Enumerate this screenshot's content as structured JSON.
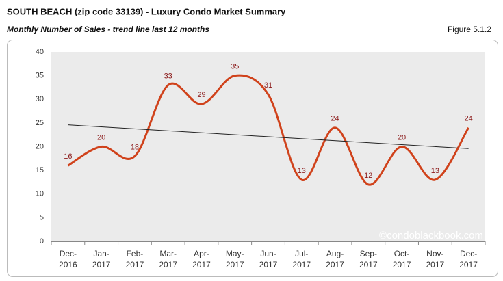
{
  "chart_data": {
    "type": "line",
    "title": "SOUTH BEACH (zip code 33139) - Luxury Condo Market Summary",
    "subtitle": "Monthly Number of Sales - trend line last 12 months",
    "figure_label": "Figure 5.1.2",
    "watermark": "©condoblackbook.com",
    "categories": [
      "Dec-2016",
      "Jan-2017",
      "Feb-2017",
      "Mar-2017",
      "Apr-2017",
      "May-2017",
      "Jun-2017",
      "Jul-2017",
      "Aug-2017",
      "Sep-2017",
      "Oct-2017",
      "Nov-2017",
      "Dec-2017"
    ],
    "values": [
      16,
      20,
      18,
      33,
      29,
      35,
      31,
      13,
      24,
      12,
      20,
      13,
      24
    ],
    "color": "#d0421b",
    "label_color": "#8b1a1a",
    "smooth": true,
    "trend_line": {
      "values": [
        24.6,
        19.6
      ],
      "color": "#222222"
    },
    "ylim": [
      0,
      40
    ],
    "yticks": [
      0,
      5,
      10,
      15,
      20,
      25,
      30,
      35,
      40
    ],
    "grid": false
  }
}
